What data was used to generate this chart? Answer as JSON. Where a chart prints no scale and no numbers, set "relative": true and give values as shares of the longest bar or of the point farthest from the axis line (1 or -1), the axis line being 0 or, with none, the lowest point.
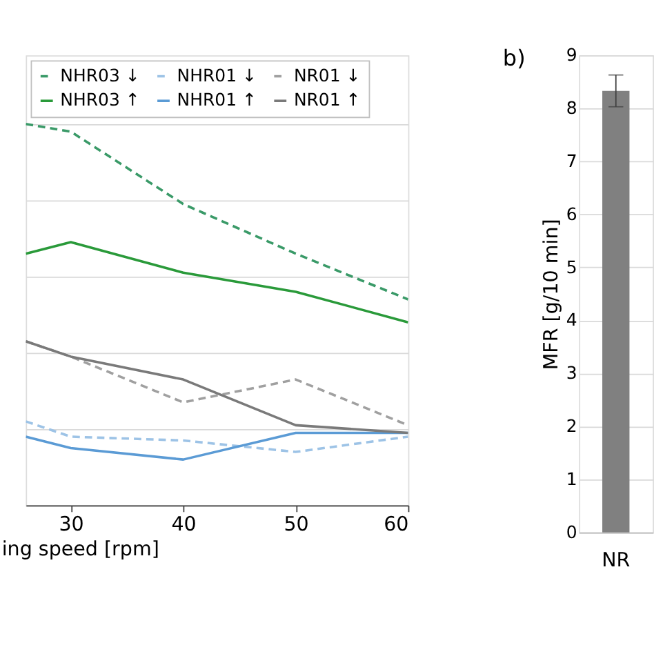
{
  "chart_data": [
    {
      "type": "line",
      "relative": true,
      "x": [
        26,
        30,
        40,
        50,
        60
      ],
      "xlim": [
        26,
        60
      ],
      "xticks": [
        30,
        40,
        50,
        60
      ],
      "xlabel": "ing speed [rpm]",
      "grid": "y",
      "legend": "top",
      "tick_labels": "x",
      "series": [
        {
          "name": "NHR03 ↓",
          "color": "#3a9a68",
          "line_style": "dashed",
          "values": [
            1,
            0.98,
            0.79,
            0.66,
            0.54
          ]
        },
        {
          "name": "NHR03 ↑",
          "color": "#2a9a3a",
          "line_style": "solid",
          "values": [
            0.66,
            0.69,
            0.61,
            0.56,
            0.48
          ]
        },
        {
          "name": "NHR01 ↓",
          "color": "#9dc3e6",
          "line_style": "dashed",
          "values": [
            0.22,
            0.18,
            0.17,
            0.14,
            0.18
          ]
        },
        {
          "name": "NHR01 ↑",
          "color": "#5b9bd5",
          "line_style": "solid",
          "values": [
            0.18,
            0.15,
            0.12,
            0.19,
            0.19
          ]
        },
        {
          "name": "NR01 ↓",
          "color": "#a0a0a0",
          "line_style": "dashed",
          "values": [
            0.43,
            0.39,
            0.27,
            0.33,
            0.21
          ]
        },
        {
          "name": "NR01 ↑",
          "color": "#7a7a7a",
          "line_style": "solid",
          "values": [
            0.43,
            0.39,
            0.33,
            0.21,
            0.19
          ]
        }
      ]
    },
    {
      "type": "bar",
      "categories": [
        "NR"
      ],
      "values": [
        8.33
      ],
      "errors": [
        0.3
      ],
      "color": "#808080",
      "ylim": [
        0,
        9
      ],
      "yticks": [
        0,
        1,
        2,
        3,
        4,
        5,
        6,
        7,
        8,
        9
      ],
      "ylabel": "MFR [g/10 min]",
      "grid": "y",
      "annotations": [
        "b)"
      ]
    }
  ]
}
